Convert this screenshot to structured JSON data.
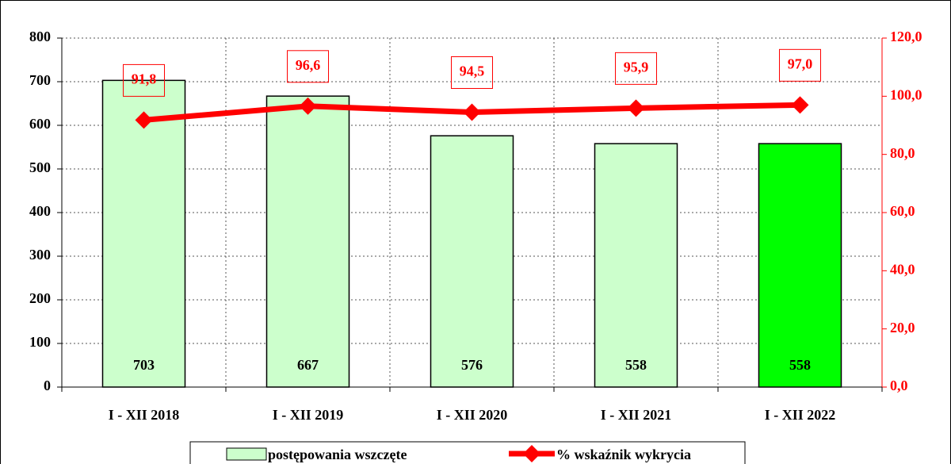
{
  "chart_data": {
    "type": "bar-line",
    "categories": [
      "I - XII 2018",
      "I - XII 2019",
      "I - XII 2020",
      "I - XII 2021",
      "I - XII 2022"
    ],
    "series": [
      {
        "name": "postępowania wszczęte",
        "type": "bar",
        "colors": [
          "#ccffcc",
          "#ccffcc",
          "#ccffcc",
          "#ccffcc",
          "#00ff00"
        ],
        "values": [
          703,
          667,
          576,
          558,
          558
        ]
      },
      {
        "name": "% wskaźnik wykrycia",
        "type": "line",
        "axis": "y2",
        "color": "#ff0000",
        "values": [
          91.8,
          96.6,
          94.5,
          95.9,
          97.0
        ],
        "value_labels": [
          "91,8",
          "96,6",
          "94,5",
          "95,9",
          "97,0"
        ]
      }
    ],
    "ylim": [
      0,
      800
    ],
    "yticks": [
      0,
      100,
      200,
      300,
      400,
      500,
      600,
      700,
      800
    ],
    "y2lim": [
      0,
      120
    ],
    "y2ticks": [
      {
        "value": 0,
        "label": "0,0"
      },
      {
        "value": 20,
        "label": "20,0"
      },
      {
        "value": 40,
        "label": "40,0"
      },
      {
        "value": 60,
        "label": "60,0"
      },
      {
        "value": 80,
        "label": "80,0"
      },
      {
        "value": 100,
        "label": "100,0"
      },
      {
        "value": 120,
        "label": "120,0"
      }
    ],
    "grid": true,
    "legend": "bottom"
  }
}
